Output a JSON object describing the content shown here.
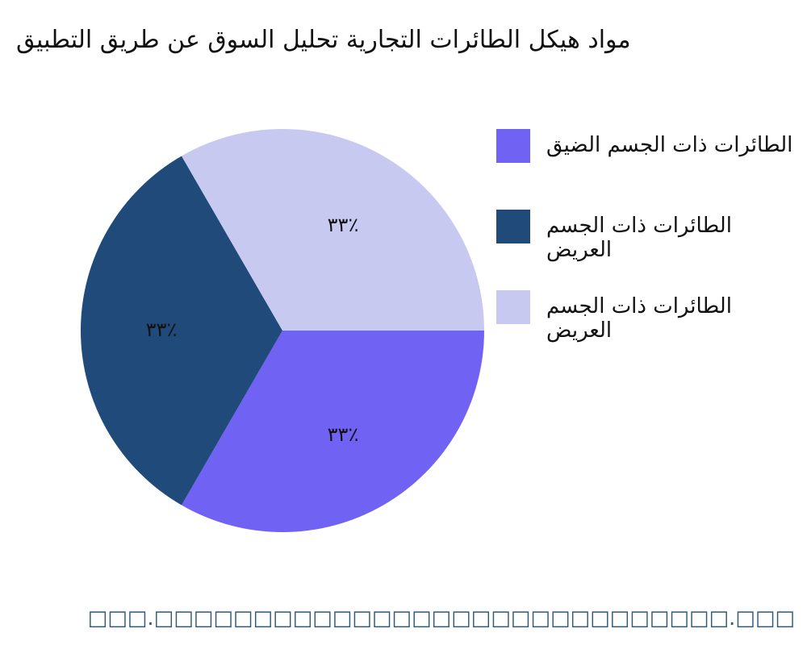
{
  "chart_data": {
    "type": "pie",
    "title": "مواد هيكل الطائرات التجارية تحليل السوق عن طريق التطبيق",
    "categories": [
      "الطائرات ذات الجسم الضيق",
      "الطائرات ذات الجسم العريض",
      "الطائرات ذات الجسم العريض"
    ],
    "values": [
      33,
      33,
      33
    ],
    "value_labels": [
      "٣٣٪",
      "٣٣٪",
      "٣٣٪"
    ],
    "colors": [
      "#7062f2",
      "#1f4a7a",
      "#c8c9f0"
    ],
    "legend": "right"
  },
  "footer": "□□□.□□□□□□□□□□□□□□□□□□□□□□□□□□□□□.□□□"
}
